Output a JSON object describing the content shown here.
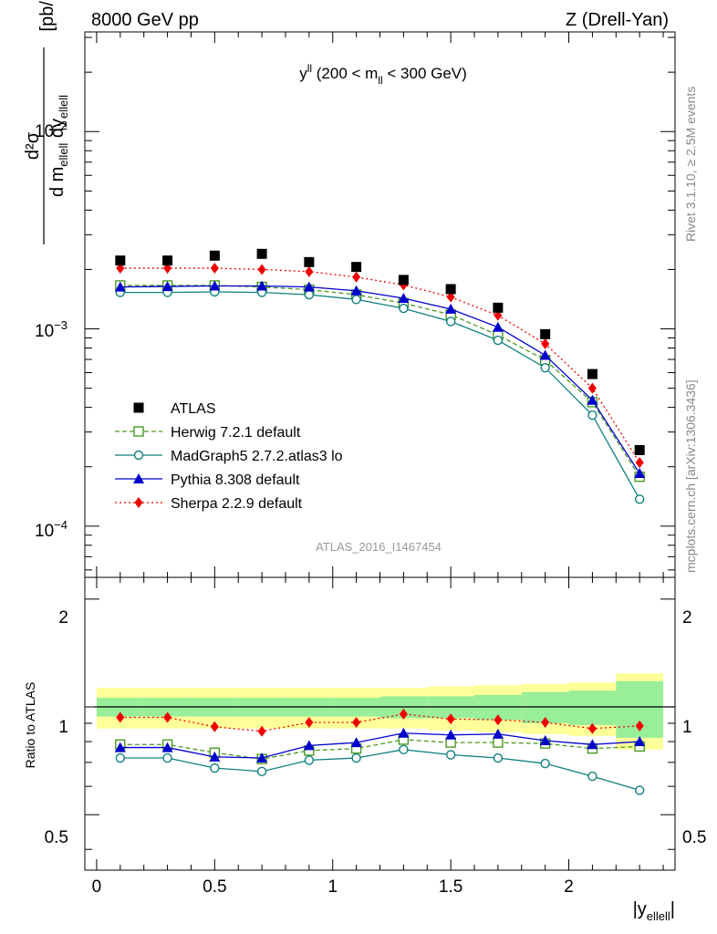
{
  "header": {
    "left": "8000 GeV pp",
    "right": "Z (Drell-Yan)"
  },
  "main_panel": {
    "title_main": "y",
    "title_sup": "ll",
    "title_rest_a": " (200 < m",
    "title_sub": "ll",
    "title_rest_b": " < 300 GeV)",
    "ylabel_num": "d²σ",
    "ylabel_den_a": "d m",
    "ylabel_den_sub1": "ellell",
    "ylabel_den_b": " dy",
    "ylabel_den_sub2": "ellell",
    "ylabel_unit": "[pb/GeV]",
    "y_tick_labels": {
      "t1": "10",
      "e1": "−2",
      "t2": "10",
      "e2": "−3",
      "t3": "10",
      "e3": "−4"
    },
    "watermark": "ATLAS_2016_I1467454"
  },
  "ratio_panel": {
    "ylabel": "Ratio to ATLAS",
    "y_tick_labels": [
      "2",
      "1",
      "0.5"
    ],
    "right_tick_labels": [
      "2",
      "1",
      "0.5"
    ]
  },
  "x_axis": {
    "tick_labels": [
      "0",
      "0.5",
      "1",
      "1.5",
      "2"
    ],
    "label_main": "|y",
    "label_sub": "ellell",
    "label_end": "|"
  },
  "side_text": {
    "rivet": "Rivet 3.1.10, ≥ 2.5M events",
    "mcplots": "mcplots.cern.ch [arXiv:1306.3436]"
  },
  "legend": {
    "items": [
      {
        "label": "ATLAS"
      },
      {
        "label": "Herwig 7.2.1 default"
      },
      {
        "label": "MadGraph5 2.7.2.atlas3 lo"
      },
      {
        "label": "Pythia 8.308 default"
      },
      {
        "label": "Sherpa 2.2.9 default"
      }
    ]
  },
  "chart_data": {
    "type": "line",
    "xlim": [
      -0.05,
      2.45
    ],
    "main_ylim": [
      5.5e-05,
      0.032
    ],
    "main_yscale": "log",
    "ratio_ylim": [
      0.35,
      2.3
    ],
    "ratio_yscale": "log",
    "x": [
      0.1,
      0.3,
      0.5,
      0.7,
      0.9,
      1.1,
      1.3,
      1.5,
      1.7,
      1.9,
      2.1,
      2.3
    ],
    "x_edges": [
      0.0,
      0.2,
      0.4,
      0.6,
      0.8,
      1.0,
      1.2,
      1.4,
      1.6,
      1.8,
      2.0,
      2.2,
      2.4
    ],
    "data": {
      "name": "ATLAS",
      "color": "#000000",
      "values": [
        0.00222,
        0.00222,
        0.00235,
        0.0024,
        0.00218,
        0.00206,
        0.00177,
        0.00159,
        0.00128,
        0.00094,
        0.00059,
        0.000243
      ],
      "band_inner": [
        0.06,
        0.06,
        0.06,
        0.06,
        0.06,
        0.06,
        0.07,
        0.07,
        0.08,
        0.1,
        0.11,
        0.18
      ],
      "band_outer": [
        0.13,
        0.13,
        0.13,
        0.13,
        0.13,
        0.13,
        0.13,
        0.14,
        0.15,
        0.16,
        0.17,
        0.24
      ]
    },
    "series": [
      {
        "name": "Herwig 7.2.1 default",
        "color": "#4a9a22",
        "dash": "5,3",
        "marker": "open-square",
        "values": [
          0.00166,
          0.00166,
          0.00166,
          0.00163,
          0.00158,
          0.00149,
          0.00135,
          0.00118,
          0.00093,
          0.000695,
          0.000425,
          0.000178
        ],
        "ratio": [
          0.785,
          0.785,
          0.745,
          0.715,
          0.755,
          0.765,
          0.81,
          0.795,
          0.795,
          0.79,
          0.765,
          0.775
        ]
      },
      {
        "name": "MadGraph5 2.7.2.atlas3 lo",
        "color": "#108080",
        "dash": "",
        "marker": "open-circle",
        "values": [
          0.00153,
          0.00153,
          0.00154,
          0.00153,
          0.00149,
          0.00141,
          0.00127,
          0.00109,
          0.000875,
          0.000635,
          0.000365,
          0.000137
        ],
        "ratio": [
          0.72,
          0.72,
          0.675,
          0.66,
          0.71,
          0.72,
          0.76,
          0.735,
          0.72,
          0.695,
          0.64,
          0.585
        ]
      },
      {
        "name": "Pythia 8.308 default",
        "color": "#0000cc",
        "dash": "",
        "marker": "filled-triangle",
        "values": [
          0.00163,
          0.00164,
          0.00165,
          0.00165,
          0.00163,
          0.00156,
          0.00143,
          0.00126,
          0.00102,
          0.000735,
          0.000435,
          0.000185
        ],
        "ratio": [
          0.77,
          0.77,
          0.725,
          0.72,
          0.78,
          0.795,
          0.845,
          0.835,
          0.84,
          0.805,
          0.785,
          0.8
        ]
      },
      {
        "name": "Sherpa 2.2.9 default",
        "color": "#ee0000",
        "dash": "2,3",
        "marker": "filled-diamond",
        "values": [
          0.00203,
          0.00203,
          0.00203,
          0.002,
          0.00195,
          0.00183,
          0.00167,
          0.00145,
          0.00117,
          0.00084,
          0.0005,
          0.00021
        ],
        "ratio": [
          0.935,
          0.935,
          0.88,
          0.855,
          0.905,
          0.905,
          0.955,
          0.925,
          0.92,
          0.905,
          0.87,
          0.885
        ]
      }
    ]
  }
}
